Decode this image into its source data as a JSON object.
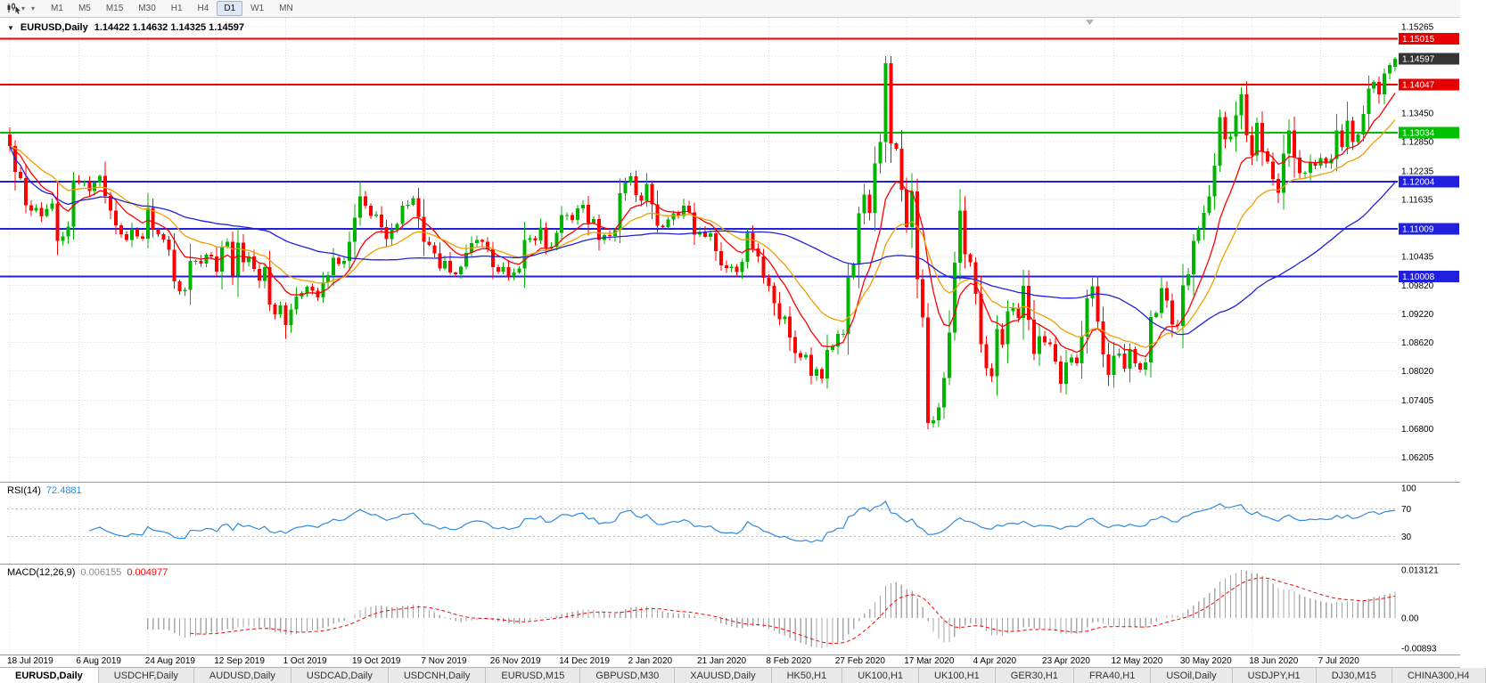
{
  "colors": {
    "up": "#00b300",
    "down": "#ff0000",
    "grid": "#dcdcdc",
    "background": "#ffffff",
    "rsi_line": "#2e8be0",
    "rsi_levels": "#b8b8b8",
    "macd_hist": "#a8a8a8",
    "macd_signal": "#ff0000",
    "ma_fast": "#ff0000",
    "ma_mid": "#f0a000",
    "ma_slow": "#2121dd",
    "badge_current": "#333333",
    "axis_text": "#000000"
  },
  "toolbar": {
    "chart_type_icon": "candlestick-chart-icon",
    "caret": "▾",
    "timeframes": [
      "M1",
      "M5",
      "M15",
      "M30",
      "H1",
      "H4",
      "D1",
      "W1",
      "MN"
    ],
    "active_timeframe": "D1"
  },
  "window": {
    "collapse_icon": "▼",
    "title_symbol": "EURUSD,Daily",
    "ohlc": "1.14422 1.14632 1.14325 1.14597"
  },
  "price_axis": {
    "labels": [
      "1.15265",
      "1.13450",
      "1.12850",
      "1.12235",
      "1.11635",
      "1.10435",
      "1.09820",
      "1.09220",
      "1.08620",
      "1.08020",
      "1.07405",
      "1.06800",
      "1.06205"
    ],
    "current_price": "1.14597"
  },
  "hlines": [
    {
      "price": 1.15015,
      "label": "1.15015",
      "color": "#e60000",
      "width": 2
    },
    {
      "price": 1.14047,
      "label": "1.14047",
      "color": "#e60000",
      "width": 2
    },
    {
      "price": 1.13034,
      "label": "1.13034",
      "color": "#00c000",
      "width": 2
    },
    {
      "price": 1.12004,
      "label": "1.12004",
      "color": "#2020dd",
      "width": 2
    },
    {
      "price": 1.11009,
      "label": "1.11009",
      "color": "#2020dd",
      "width": 2
    },
    {
      "price": 1.10008,
      "label": "1.10008",
      "color": "#2020dd",
      "width": 2
    }
  ],
  "time_axis": [
    "18 Jul 2019",
    "6 Aug 2019",
    "24 Aug 2019",
    "12 Sep 2019",
    "1 Oct 2019",
    "19 Oct 2019",
    "7 Nov 2019",
    "26 Nov 2019",
    "14 Dec 2019",
    "2 Jan 2020",
    "21 Jan 2020",
    "8 Feb 2020",
    "27 Feb 2020",
    "17 Mar 2020",
    "4 Apr 2020",
    "23 Apr 2020",
    "12 May 2020",
    "30 May 2020",
    "18 Jun 2020",
    "7 Jul 2020"
  ],
  "rsi": {
    "name": "RSI(14)",
    "value": "72.4881",
    "axis_labels": [
      "100",
      "70",
      "30"
    ],
    "axis_values": [
      100,
      70,
      30
    ],
    "level_lines": [
      70,
      30
    ],
    "period": 14
  },
  "macd": {
    "name": "MACD(12,26,9)",
    "value_main": "0.006155",
    "value_signal": "0.004977",
    "axis_top": "0.013121",
    "axis_zero": "0.00",
    "axis_bottom": "-0.00893",
    "params": [
      12,
      26,
      9
    ]
  },
  "tabs": {
    "active": "EURUSD,Daily",
    "items": [
      "EURUSD,Daily",
      "USDCHF,Daily",
      "AUDUSD,Daily",
      "USDCAD,Daily",
      "USDCNH,Daily",
      "EURUSD,M15",
      "GBPUSD,M30",
      "XAUUSD,Daily",
      "HK50,H1",
      "UK100,H1",
      "UK100,H1",
      "GER30,H1",
      "FRA40,H1",
      "USOil,Daily",
      "USDJPY,H1",
      "DJ30,M15",
      "CHINA300,H4"
    ]
  },
  "chart_data": {
    "type": "candlestick",
    "symbol": "EURUSD",
    "timeframe": "Daily",
    "first_open": 1.13,
    "tick_every": 13,
    "grid_prices": [
      1.15265,
      1.1465,
      1.14045,
      1.1345,
      1.1285,
      1.12235,
      1.11635,
      1.1102,
      1.10435,
      1.0982,
      1.0922,
      1.0862,
      1.0802,
      1.07405,
      1.068,
      1.06205
    ],
    "moving_averages": [
      {
        "type": "ema",
        "period": 10,
        "color_key": "ma_fast"
      },
      {
        "type": "ema",
        "period": 21,
        "color_key": "ma_mid"
      },
      {
        "type": "sma",
        "period": 50,
        "color_key": "ma_slow"
      }
    ],
    "current_bar": {
      "open": 1.14422,
      "high": 1.14632,
      "low": 1.14325,
      "close": 1.14597
    },
    "closes": [
      1.1276,
      1.1221,
      1.1208,
      1.1151,
      1.114,
      1.1145,
      1.1128,
      1.1143,
      1.1155,
      1.1076,
      1.1085,
      1.1106,
      1.1203,
      1.12,
      1.12,
      1.1181,
      1.1199,
      1.1213,
      1.1171,
      1.114,
      1.1109,
      1.109,
      1.1078,
      1.11,
      1.1085,
      1.1081,
      1.1145,
      1.1101,
      1.109,
      1.1079,
      1.1057,
      1.0991,
      1.097,
      1.0973,
      1.1034,
      1.1034,
      1.1028,
      1.1047,
      1.1043,
      1.1011,
      1.1064,
      1.1074,
      1.1003,
      1.1072,
      1.1031,
      1.1043,
      1.1017,
      1.0992,
      1.1021,
      1.0942,
      1.0921,
      1.094,
      1.0899,
      1.0932,
      1.0959,
      1.0966,
      1.0979,
      1.0971,
      1.0957,
      1.0989,
      1.1004,
      1.104,
      1.1027,
      1.1034,
      1.1074,
      1.1125,
      1.117,
      1.115,
      1.1128,
      1.1131,
      1.1105,
      1.108,
      1.11,
      1.1112,
      1.115,
      1.1152,
      1.1166,
      1.1127,
      1.1074,
      1.1067,
      1.105,
      1.1018,
      1.1034,
      1.1009,
      1.1006,
      1.1022,
      1.1051,
      1.1071,
      1.1078,
      1.1074,
      1.1058,
      1.1021,
      1.1011,
      1.1021,
      1.1001,
      1.1009,
      1.1018,
      1.1078,
      1.1082,
      1.1077,
      1.1104,
      1.106,
      1.1064,
      1.1093,
      1.113,
      1.113,
      1.112,
      1.1144,
      1.1152,
      1.1113,
      1.1122,
      1.1078,
      1.1088,
      1.1086,
      1.1098,
      1.1176,
      1.1199,
      1.1212,
      1.1172,
      1.116,
      1.1196,
      1.1153,
      1.1108,
      1.1105,
      1.1121,
      1.1134,
      1.1128,
      1.115,
      1.1136,
      1.1089,
      1.1095,
      1.1084,
      1.1092,
      1.1054,
      1.1024,
      1.1019,
      1.1022,
      1.101,
      1.1032,
      1.1093,
      1.106,
      1.1043,
      1.0998,
      1.0981,
      1.0945,
      1.0911,
      1.0917,
      1.0873,
      1.084,
      1.083,
      1.0836,
      1.0792,
      1.0806,
      1.0786,
      1.0846,
      1.0854,
      1.088,
      1.088,
      1.1,
      1.1026,
      1.1134,
      1.1173,
      1.1135,
      1.1239,
      1.1284,
      1.145,
      1.1281,
      1.127,
      1.1184,
      1.1105,
      1.118,
      1.0995,
      1.0915,
      1.0692,
      1.0698,
      1.0725,
      1.0787,
      1.0883,
      1.103,
      1.114,
      1.1048,
      1.1031,
      1.0964,
      1.0858,
      1.0808,
      1.0791,
      1.089,
      1.0858,
      1.0928,
      1.0935,
      1.0914,
      1.0981,
      1.091,
      1.0838,
      1.0875,
      1.0862,
      1.0858,
      1.0822,
      1.0775,
      1.082,
      1.083,
      1.0818,
      1.0874,
      1.0955,
      1.098,
      1.0906,
      1.0837,
      1.0794,
      1.0834,
      1.0839,
      1.0807,
      1.0848,
      1.0818,
      1.0805,
      1.082,
      1.0916,
      1.0924,
      1.0977,
      1.095,
      1.09,
      1.0897,
      1.0982,
      1.1006,
      1.1076,
      1.1102,
      1.1135,
      1.117,
      1.1234,
      1.1337,
      1.129,
      1.1295,
      1.134,
      1.1384,
      1.1298,
      1.1256,
      1.1324,
      1.1264,
      1.1243,
      1.1206,
      1.1177,
      1.126,
      1.1308,
      1.1251,
      1.1218,
      1.1219,
      1.1242,
      1.1234,
      1.125,
      1.1239,
      1.1248,
      1.1308,
      1.1274,
      1.1329,
      1.1284,
      1.13,
      1.1343,
      1.1397,
      1.1411,
      1.1384,
      1.1428,
      1.1446,
      1.14597
    ]
  }
}
